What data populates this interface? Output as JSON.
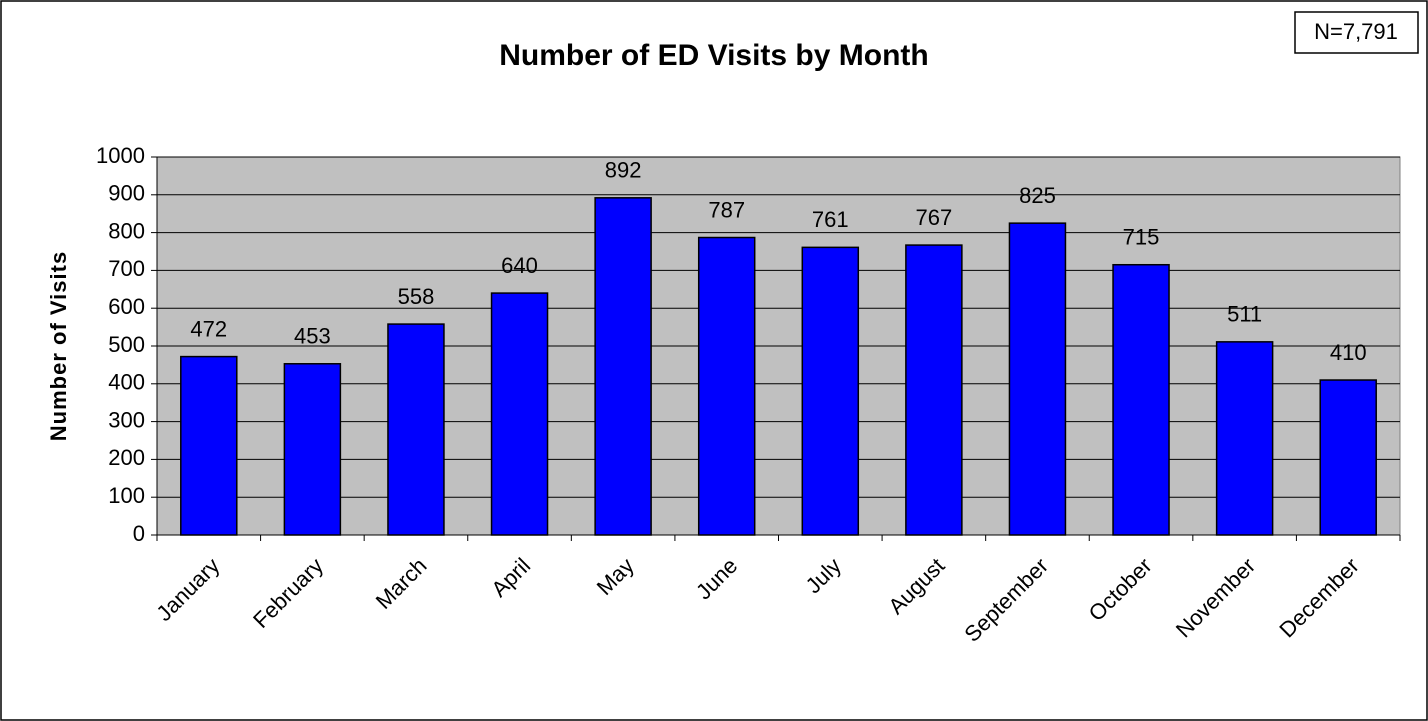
{
  "chart_data": {
    "type": "bar",
    "title": "Number of ED Visits by Month",
    "annotation": "N=7,791",
    "y_label": "Number of Visits",
    "categories": [
      "January",
      "February",
      "March",
      "April",
      "May",
      "June",
      "July",
      "August",
      "September",
      "October",
      "November",
      "December"
    ],
    "values": [
      472,
      453,
      558,
      640,
      892,
      787,
      761,
      767,
      825,
      715,
      511,
      410
    ],
    "color": "#0000ff",
    "ylim": [
      0,
      1000
    ],
    "yticks": [
      0,
      100,
      200,
      300,
      400,
      500,
      600,
      700,
      800,
      900,
      1000
    ],
    "grid": true
  }
}
